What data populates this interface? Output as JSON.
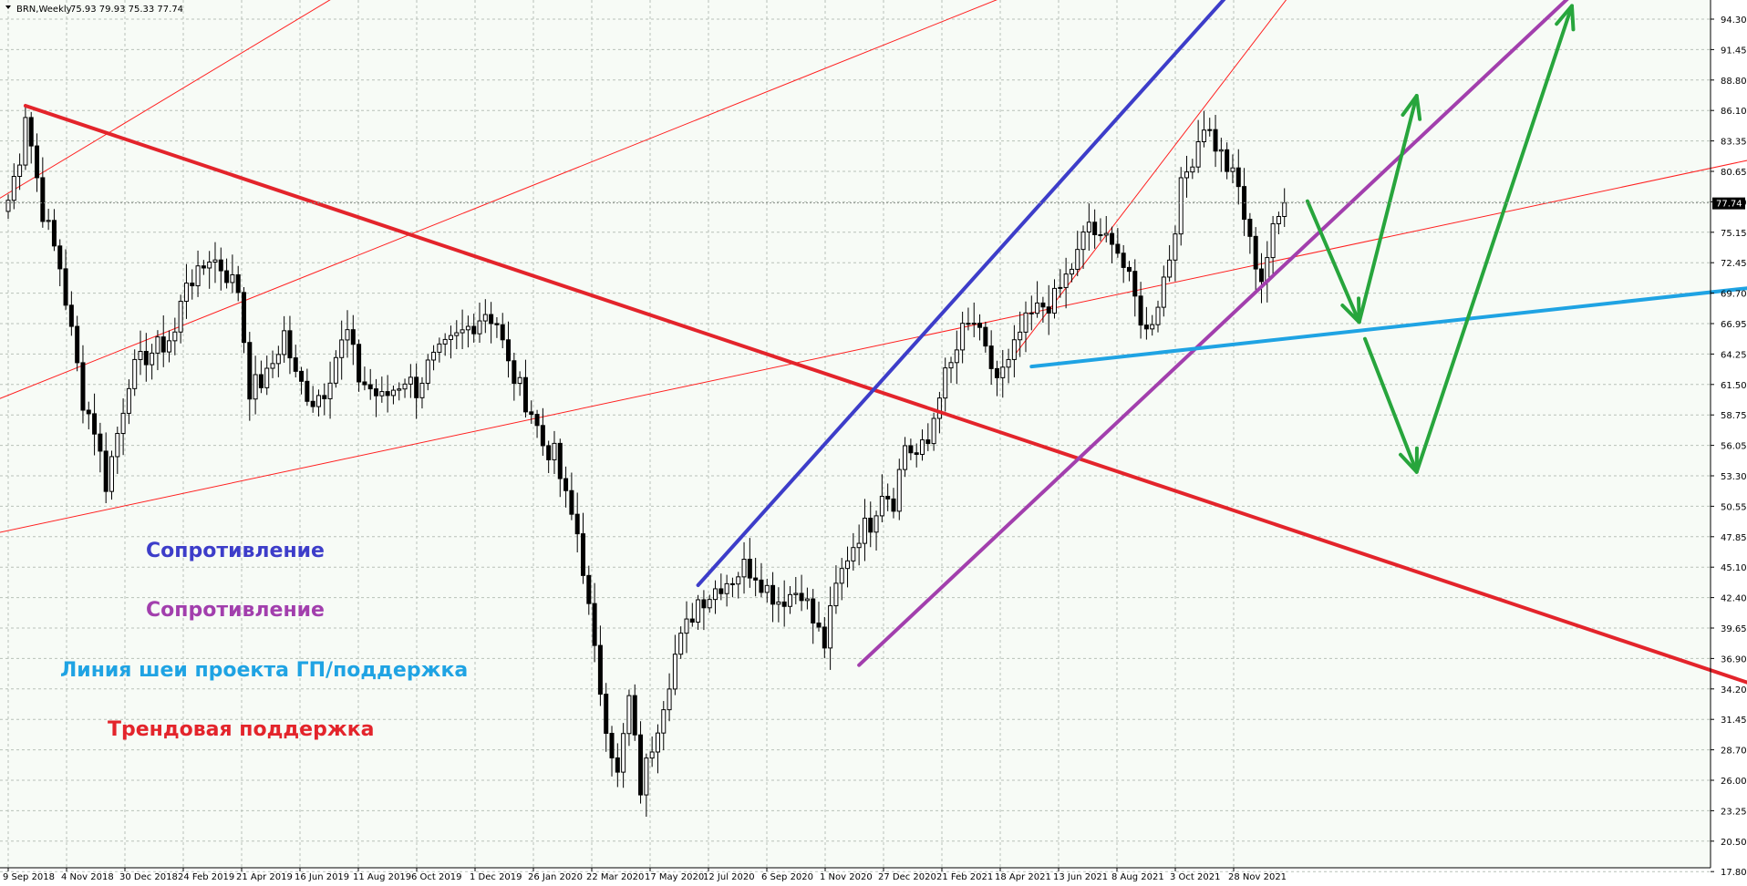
{
  "header": {
    "symbol": "BRN,Weekly",
    "ohlc": "75.93 79.93 75.33 77.74"
  },
  "price_tag": "77.74",
  "colors": {
    "background": "#f7fbf6",
    "grid": "#b9c2b9",
    "trend_red": "#e3242b",
    "thin_red": "#ff2020",
    "resistance_blue": "#3d3dc9",
    "resistance_purple": "#a23fad",
    "neckline_cyan": "#1fa3e3",
    "forecast_green": "#27a53c",
    "bull_body": "#ffffff",
    "bear_body": "#000000"
  },
  "legend": [
    {
      "text": "Сопротивление",
      "color": "#3d3dc9"
    },
    {
      "text": "Сопротивление",
      "color": "#a23fad"
    },
    {
      "text": "Линия шеи проекта ГП/поддержка",
      "color": "#1fa3e3"
    },
    {
      "text": "Трендовая поддержка",
      "color": "#e3242b"
    }
  ],
  "chart_data": {
    "type": "candlestick",
    "title": "BRN,Weekly",
    "y_ticks": [
      "94.30",
      "91.45",
      "88.80",
      "86.10",
      "83.35",
      "80.65",
      "77.90",
      "75.15",
      "72.45",
      "69.70",
      "66.95",
      "64.25",
      "61.50",
      "58.75",
      "56.05",
      "53.30",
      "50.55",
      "47.85",
      "45.10",
      "42.40",
      "39.65",
      "36.90",
      "34.20",
      "31.45",
      "28.70",
      "26.00",
      "23.25",
      "20.50",
      "17.80"
    ],
    "x_ticks": [
      "9 Sep 2018",
      "4 Nov 2018",
      "30 Dec 2018",
      "24 Feb 2019",
      "21 Apr 2019",
      "16 Jun 2019",
      "11 Aug 2019",
      "6 Oct 2019",
      "1 Dec 2019",
      "26 Jan 2020",
      "22 Mar 2020",
      "17 May 2020",
      "12 Jul 2020",
      "6 Sep 2020",
      "1 Nov 2020",
      "27 Dec 2020",
      "21 Feb 2021",
      "18 Apr 2021",
      "13 Jun 2021",
      "8 Aug 2021",
      "3 Oct 2021",
      "28 Nov 2021"
    ],
    "ylim": [
      17.8,
      96.0
    ],
    "last_price": 77.74,
    "anchors": [
      [
        0,
        78
      ],
      [
        2,
        82
      ],
      [
        3,
        86
      ],
      [
        6,
        77
      ],
      [
        9,
        72
      ],
      [
        11,
        66
      ],
      [
        13,
        60
      ],
      [
        15,
        57.5
      ],
      [
        17,
        52.5
      ],
      [
        19,
        57
      ],
      [
        21,
        62
      ],
      [
        24,
        64
      ],
      [
        27,
        65
      ],
      [
        29,
        66
      ],
      [
        31,
        71
      ],
      [
        33,
        71
      ],
      [
        35,
        73
      ],
      [
        37,
        72
      ],
      [
        40,
        70
      ],
      [
        42,
        61
      ],
      [
        45,
        62
      ],
      [
        48,
        66
      ],
      [
        50,
        62
      ],
      [
        53,
        60
      ],
      [
        55,
        61
      ],
      [
        57,
        64
      ],
      [
        59,
        66
      ],
      [
        61,
        62
      ],
      [
        63,
        61
      ],
      [
        65,
        60
      ],
      [
        67,
        61
      ],
      [
        69,
        62
      ],
      [
        71,
        61
      ],
      [
        73,
        63
      ],
      [
        75,
        64
      ],
      [
        77,
        65
      ],
      [
        79,
        66
      ],
      [
        81,
        67
      ],
      [
        83,
        68
      ],
      [
        85,
        67
      ],
      [
        87,
        63
      ],
      [
        89,
        61
      ],
      [
        91,
        59
      ],
      [
        93,
        56
      ],
      [
        95,
        55
      ],
      [
        97,
        51
      ],
      [
        99,
        48
      ],
      [
        100,
        45
      ],
      [
        102,
        37
      ],
      [
        104,
        31
      ],
      [
        106,
        26
      ],
      [
        108,
        33
      ],
      [
        110,
        25
      ],
      [
        112,
        29
      ],
      [
        114,
        33
      ],
      [
        116,
        37
      ],
      [
        118,
        39.5
      ],
      [
        120,
        42
      ],
      [
        122,
        42.5
      ],
      [
        124,
        43.5
      ],
      [
        126,
        44
      ],
      [
        128,
        45
      ],
      [
        130,
        44.5
      ],
      [
        132,
        43
      ],
      [
        134,
        42
      ],
      [
        136,
        42.5
      ],
      [
        138,
        43
      ],
      [
        140,
        40
      ],
      [
        142,
        38
      ],
      [
        144,
        43
      ],
      [
        146,
        46
      ],
      [
        148,
        48
      ],
      [
        150,
        49
      ],
      [
        152,
        52
      ],
      [
        154,
        51
      ],
      [
        156,
        56
      ],
      [
        158,
        55
      ],
      [
        160,
        56
      ],
      [
        162,
        61
      ],
      [
        164,
        63
      ],
      [
        166,
        66
      ],
      [
        168,
        67
      ],
      [
        170,
        64
      ],
      [
        172,
        62
      ],
      [
        174,
        63
      ],
      [
        176,
        66
      ],
      [
        178,
        67.5
      ],
      [
        180,
        68.5
      ],
      [
        182,
        69
      ],
      [
        184,
        71
      ],
      [
        186,
        73
      ],
      [
        188,
        76
      ],
      [
        190,
        74
      ],
      [
        192,
        75
      ],
      [
        194,
        72
      ],
      [
        196,
        69
      ],
      [
        198,
        66
      ],
      [
        200,
        69
      ],
      [
        202,
        73
      ],
      [
        204,
        79
      ],
      [
        206,
        82
      ],
      [
        208,
        85
      ],
      [
        210,
        83
      ],
      [
        212,
        81
      ],
      [
        214,
        79
      ],
      [
        216,
        74
      ],
      [
        218,
        71
      ],
      [
        220,
        75
      ],
      [
        222,
        77.74
      ]
    ],
    "lines": [
      {
        "name": "trend_red",
        "kind": "thick",
        "from": [
          3,
          86.5
        ],
        "to": [
          320,
          31.5
        ]
      },
      {
        "name": "thin_red_1",
        "kind": "thin",
        "from": [
          -2,
          78
        ],
        "to": [
          88,
          106
        ]
      },
      {
        "name": "thin_red_2",
        "kind": "thin",
        "from": [
          -2,
          60
        ],
        "to": [
          220,
          106
        ]
      },
      {
        "name": "thin_red_3",
        "kind": "thin",
        "from": [
          -2,
          48
        ],
        "to": [
          320,
          83.5
        ]
      },
      {
        "name": "thin_red_4",
        "kind": "thin",
        "from": [
          175,
          64
        ],
        "to": [
          237,
          106
        ]
      },
      {
        "name": "resistance_blue",
        "kind": "blue",
        "from": [
          120,
          43.3
        ],
        "to": [
          220,
          101
        ]
      },
      {
        "name": "resistance_purple",
        "kind": "purple",
        "from": [
          148,
          36.1
        ],
        "to": [
          272,
          96.5
        ]
      },
      {
        "name": "neckline_cyan",
        "kind": "cyan",
        "from": [
          178,
          63
        ],
        "to": [
          305,
          70.2
        ]
      }
    ],
    "forecast_arrows": [
      {
        "from": [
          226,
          77.9
        ],
        "to": [
          235,
          67.0
        ]
      },
      {
        "from": [
          235,
          67.0
        ],
        "to": [
          245,
          87.4
        ]
      },
      {
        "from": [
          236,
          65.5
        ],
        "to": [
          245,
          53.5
        ]
      },
      {
        "from": [
          245,
          53.5
        ],
        "to": [
          272,
          95.5
        ]
      }
    ]
  }
}
